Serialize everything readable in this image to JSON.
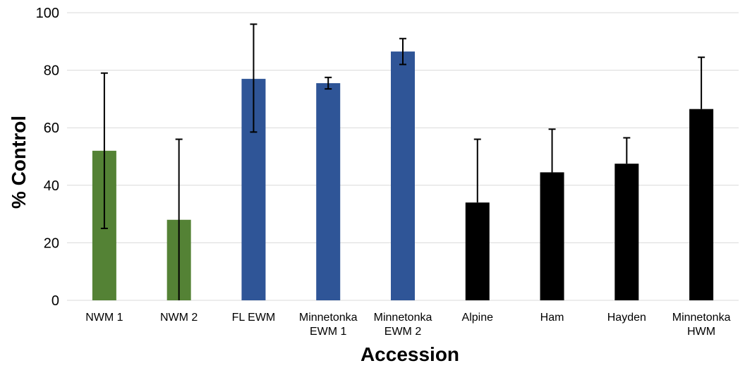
{
  "chart_data": {
    "type": "bar",
    "title": "",
    "xlabel": "Accession",
    "ylabel": "% Control",
    "ylim": [
      0,
      100
    ],
    "yticks": [
      0,
      20,
      40,
      60,
      80,
      100
    ],
    "grid": true,
    "categories": [
      {
        "lines": [
          "NWM 1"
        ]
      },
      {
        "lines": [
          "NWM 2"
        ]
      },
      {
        "lines": [
          "FL EWM"
        ]
      },
      {
        "lines": [
          "Minnetonka",
          "EWM 1"
        ]
      },
      {
        "lines": [
          "Minnetonka",
          "EWM 2"
        ]
      },
      {
        "lines": [
          "Alpine"
        ]
      },
      {
        "lines": [
          "Ham"
        ]
      },
      {
        "lines": [
          "Hayden"
        ]
      },
      {
        "lines": [
          "Minnetonka",
          "HWM"
        ]
      }
    ],
    "values": [
      52,
      28,
      77,
      75.5,
      86.5,
      34,
      44.5,
      47.5,
      66.5
    ],
    "error_low": [
      25,
      0,
      58.5,
      73.5,
      82,
      34,
      44.5,
      47.5,
      66.5
    ],
    "error_high": [
      79,
      56,
      96,
      77.5,
      91,
      56,
      59.5,
      56.5,
      84.5
    ],
    "colors": [
      "#548235",
      "#548235",
      "#2F5597",
      "#2F5597",
      "#2F5597",
      "#000000",
      "#000000",
      "#000000",
      "#000000"
    ]
  }
}
